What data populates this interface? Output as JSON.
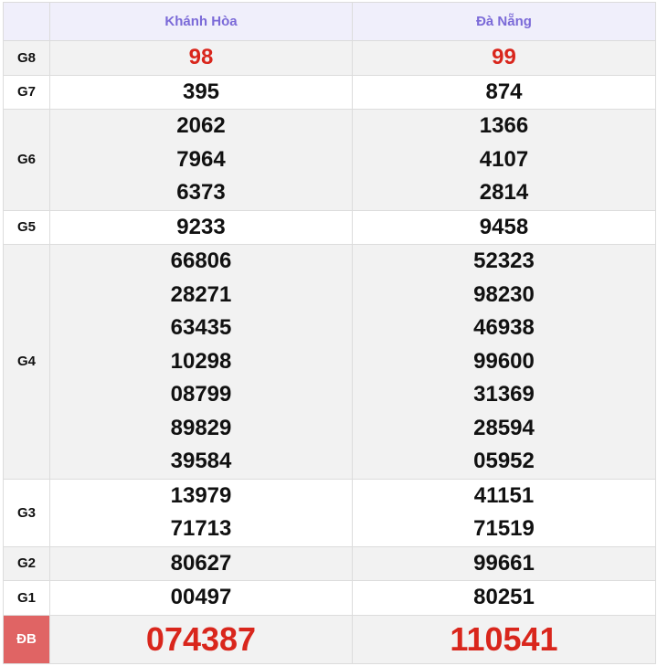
{
  "header": {
    "corner": "",
    "provinces": [
      "Khánh Hòa",
      "Đà Nẵng"
    ]
  },
  "colors": {
    "header_text": "#7b6ad8",
    "highlight": "#d9261c",
    "special_label_bg": "#e06464",
    "row_alt": "#f2f2f2"
  },
  "rows": [
    {
      "label": "G8",
      "style": "red",
      "values": [
        [
          "98"
        ],
        [
          "99"
        ]
      ]
    },
    {
      "label": "G7",
      "values": [
        [
          "395"
        ],
        [
          "874"
        ]
      ]
    },
    {
      "label": "G6",
      "values": [
        [
          "2062",
          "7964",
          "6373"
        ],
        [
          "1366",
          "4107",
          "2814"
        ]
      ]
    },
    {
      "label": "G5",
      "values": [
        [
          "9233"
        ],
        [
          "9458"
        ]
      ]
    },
    {
      "label": "G4",
      "values": [
        [
          "66806",
          "28271",
          "63435",
          "10298",
          "08799",
          "89829",
          "39584"
        ],
        [
          "52323",
          "98230",
          "46938",
          "99600",
          "31369",
          "28594",
          "05952"
        ]
      ]
    },
    {
      "label": "G3",
      "values": [
        [
          "13979",
          "71713"
        ],
        [
          "41151",
          "71519"
        ]
      ]
    },
    {
      "label": "G2",
      "values": [
        [
          "80627"
        ],
        [
          "99661"
        ]
      ]
    },
    {
      "label": "G1",
      "values": [
        [
          "00497"
        ],
        [
          "80251"
        ]
      ]
    },
    {
      "label": "ĐB",
      "style": "special",
      "values": [
        [
          "074387"
        ],
        [
          "110541"
        ]
      ]
    }
  ]
}
